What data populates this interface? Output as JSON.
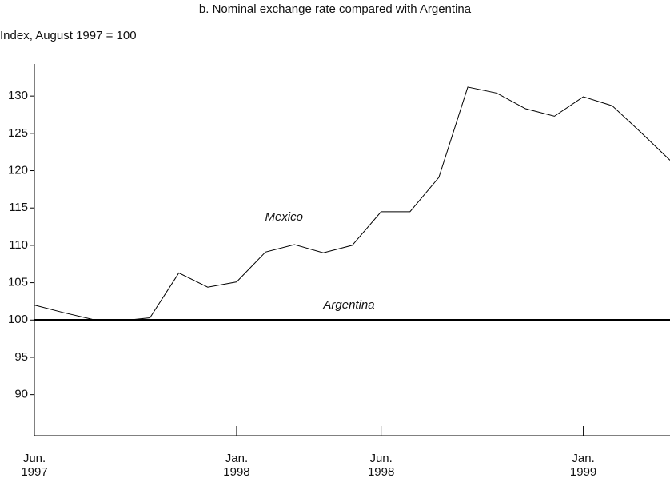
{
  "chart_data": {
    "type": "line",
    "title": "b. Nominal exchange rate compared with Argentina",
    "y_label": "Index, August 1997 = 100",
    "categories": [
      "Jun.\n1997",
      null,
      null,
      null,
      null,
      null,
      null,
      "Jan.\n1998",
      null,
      null,
      null,
      null,
      "Jun.\n1998",
      null,
      null,
      null,
      null,
      null,
      null,
      "Jan.\n1999",
      null,
      null,
      null
    ],
    "series": [
      {
        "name": "Mexico",
        "color": "#000000",
        "values": [
          102.0,
          101.0,
          100.1,
          99.9,
          100.3,
          106.3,
          104.4,
          105.1,
          109.1,
          110.1,
          109.0,
          110.0,
          114.5,
          114.5,
          119.1,
          131.2,
          130.4,
          128.3,
          127.3,
          129.9,
          128.7,
          125.1,
          121.4
        ]
      },
      {
        "name": "Argentina",
        "color": "#000000",
        "values": [
          100,
          100,
          100,
          100,
          100,
          100,
          100,
          100,
          100,
          100,
          100,
          100,
          100,
          100,
          100,
          100,
          100,
          100,
          100,
          100,
          100,
          100,
          100
        ]
      }
    ],
    "ylim": [
      84.5,
      134.3
    ],
    "yticks": [
      90,
      95,
      100,
      105,
      110,
      115,
      120,
      125,
      130
    ],
    "grid": false
  }
}
